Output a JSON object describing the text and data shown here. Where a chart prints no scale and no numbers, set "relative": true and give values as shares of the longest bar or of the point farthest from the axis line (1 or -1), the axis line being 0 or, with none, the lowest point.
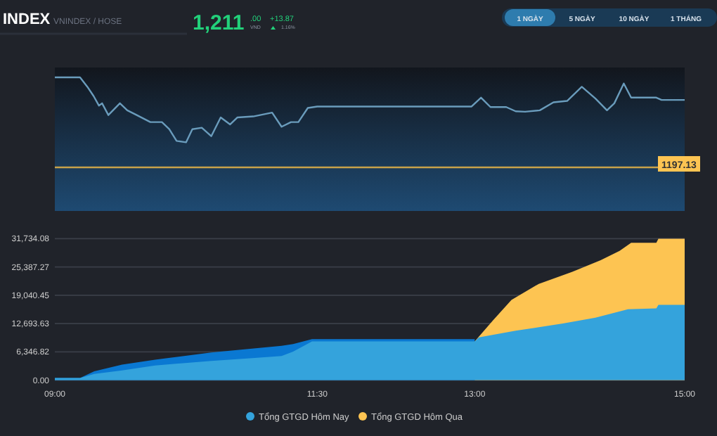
{
  "chart_data": [
    {
      "type": "line",
      "title": "INDEX",
      "subtitle": "VNINDEX / HOSE",
      "relative": true,
      "xlim": [
        9,
        15
      ],
      "annotations": [
        "1,211",
        ".00",
        "VND",
        "+13.87",
        "1.16%",
        "1 NGÀY",
        "5 NGÀY",
        "10 NGÀY",
        "1 THÁNG",
        "1197.13"
      ],
      "series": [
        {
          "color": "#6a9cbc",
          "x": [
            9.0,
            9.24,
            9.31,
            9.37,
            9.42,
            9.45,
            9.51,
            9.62,
            9.69,
            9.78,
            9.91,
            10.02,
            10.09,
            10.16,
            10.25,
            10.31,
            10.4,
            10.49,
            10.58,
            10.67,
            10.74,
            10.89,
            11.07,
            11.16,
            11.25,
            11.32,
            11.41,
            11.5,
            12.97,
            13.06,
            13.15,
            13.3,
            13.39,
            13.48,
            13.62,
            13.75,
            13.88,
            14.02,
            14.15,
            14.26,
            14.33,
            14.42,
            14.49,
            14.73,
            14.78,
            15.0
          ],
          "values": [
            1.0,
            1.0,
            0.895,
            0.791,
            0.686,
            0.712,
            0.581,
            0.712,
            0.634,
            0.581,
            0.503,
            0.503,
            0.424,
            0.294,
            0.278,
            0.424,
            0.44,
            0.346,
            0.555,
            0.477,
            0.555,
            0.566,
            0.608,
            0.451,
            0.503,
            0.503,
            0.66,
            0.676,
            0.676,
            0.775,
            0.67,
            0.67,
            0.623,
            0.618,
            0.634,
            0.723,
            0.738,
            0.895,
            0.764,
            0.634,
            0.712,
            0.932,
            0.775,
            0.775,
            0.749,
            0.749
          ]
        }
      ]
    },
    {
      "type": "area",
      "xlim": [
        9,
        15
      ],
      "ylim": [
        0,
        31734.08
      ],
      "grid": "y",
      "legend": "bottom",
      "xticks": [
        {
          "value": 9,
          "label": "09:00"
        },
        {
          "value": 11.5,
          "label": "11:30"
        },
        {
          "value": 13,
          "label": "13:00"
        },
        {
          "value": 15,
          "label": "15:00"
        }
      ],
      "yticks": [
        {
          "value": 0,
          "label": "0.00"
        },
        {
          "value": 6346.82,
          "label": "6,346.82"
        },
        {
          "value": 12693.63,
          "label": "12,693.63"
        },
        {
          "value": 19040.45,
          "label": "19,040.45"
        },
        {
          "value": 25387.27,
          "label": "25,387.27"
        },
        {
          "value": 31734.08,
          "label": "31,734.08"
        }
      ],
      "series": [
        {
          "name": "Tổng GTGD Hôm Qua",
          "color": "#fdc452",
          "x": [
            13.0,
            13.17,
            13.35,
            13.61,
            13.93,
            14.2,
            14.38,
            14.49,
            14.73,
            14.75,
            15
          ],
          "values": [
            8700,
            13300,
            18000,
            21600,
            24300,
            26900,
            29000,
            30800,
            30800,
            31700,
            31700
          ]
        },
        {
          "color": "#0a78d2",
          "x": [
            9,
            9.24,
            9.375,
            9.64,
            9.955,
            10.49,
            11.16,
            11.27,
            11.45,
            13.0
          ],
          "values": [
            500,
            500,
            2000,
            3500,
            4600,
            6200,
            7700,
            8100,
            9200,
            9200
          ]
        },
        {
          "name": "Tổng GTGD Hôm Nay",
          "color": "#34a3dc",
          "x": [
            9,
            9.24,
            9.375,
            9.64,
            9.955,
            10.49,
            11.16,
            11.27,
            11.45,
            13.0,
            13.04,
            13.39,
            13.84,
            14.15,
            14.46,
            14.73,
            14.75,
            15
          ],
          "values": [
            500,
            500,
            1400,
            2200,
            3300,
            4300,
            5400,
            6400,
            8700,
            8700,
            9600,
            11100,
            12700,
            14000,
            15900,
            16100,
            16900,
            16900
          ]
        }
      ]
    }
  ]
}
